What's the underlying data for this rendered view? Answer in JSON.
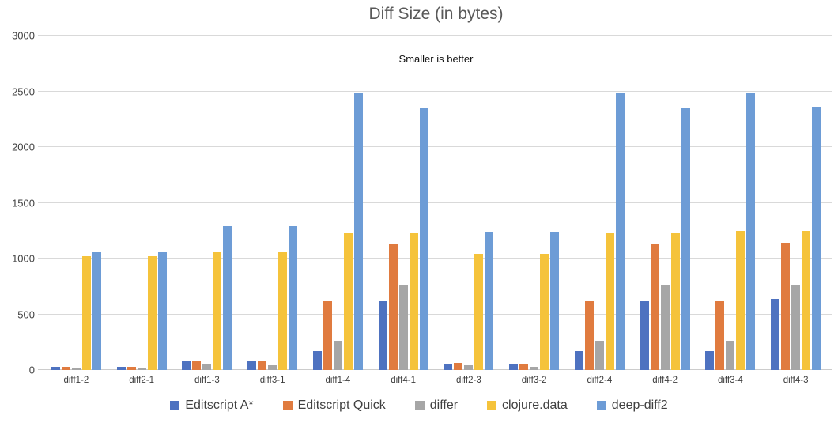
{
  "chart": {
    "title": "Diff Size (in bytes)",
    "subtitle": "Smaller is better"
  },
  "chart_data": {
    "type": "bar",
    "title": "Diff Size (in bytes)",
    "subtitle": "Smaller is better",
    "categories": [
      "diff1-2",
      "diff2-1",
      "diff1-3",
      "diff3-1",
      "diff1-4",
      "diff4-1",
      "diff2-3",
      "diff3-2",
      "diff2-4",
      "diff4-2",
      "diff3-4",
      "diff4-3"
    ],
    "series": [
      {
        "name": "Editscript A*",
        "color": "#4e72c0",
        "values": [
          25,
          25,
          85,
          85,
          170,
          620,
          60,
          50,
          170,
          620,
          170,
          635
        ]
      },
      {
        "name": "Editscript Quick",
        "color": "#e07b3f",
        "values": [
          25,
          25,
          80,
          80,
          615,
          1125,
          65,
          55,
          615,
          1125,
          615,
          1140
        ]
      },
      {
        "name": "differ",
        "color": "#a6a6a6",
        "values": [
          20,
          20,
          50,
          40,
          260,
          760,
          45,
          30,
          260,
          760,
          260,
          765
        ]
      },
      {
        "name": "clojure.data",
        "color": "#f5c33b",
        "values": [
          1020,
          1020,
          1060,
          1060,
          1230,
          1230,
          1045,
          1045,
          1230,
          1230,
          1245,
          1245
        ]
      },
      {
        "name": "deep-diff2",
        "color": "#6d9cd6",
        "values": [
          1060,
          1060,
          1290,
          1290,
          2480,
          2350,
          1235,
          1235,
          2480,
          2350,
          2490,
          2360
        ]
      }
    ],
    "xlabel": "",
    "ylabel": "",
    "ylim": [
      0,
      3000
    ],
    "ytick_step": 500,
    "grid": true,
    "legend_position": "bottom",
    "colors": {
      "grid": "#d9d9d9",
      "title_text": "#595959",
      "axis_text": "#424242"
    }
  }
}
